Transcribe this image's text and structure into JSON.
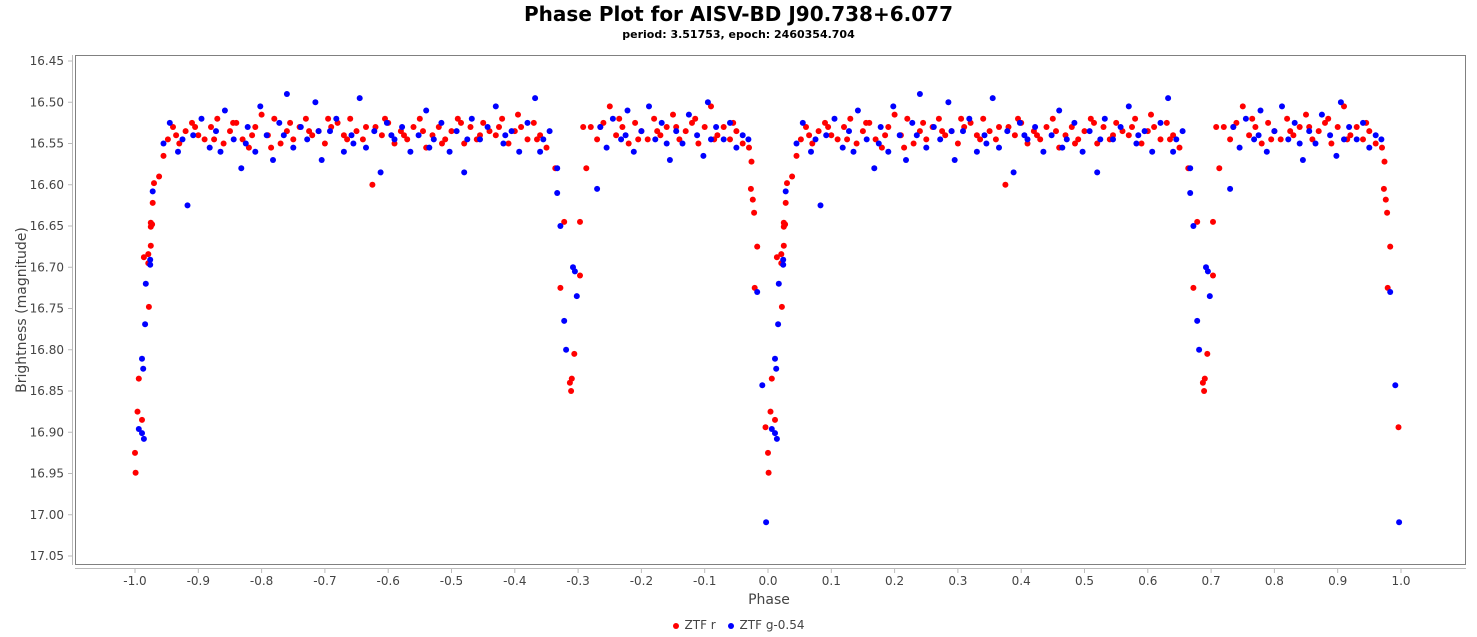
{
  "chart_data": {
    "type": "scatter",
    "title": "Phase Plot for AISV-BD J90.738+6.077",
    "subtitle": "period: 3.51753, epoch: 2460354.704",
    "xlabel": "Phase",
    "ylabel": "Brightness (magnitude)",
    "xlim": [
      -1.05,
      1.05
    ],
    "ylim": [
      16.45,
      17.05
    ],
    "y_inverted": true,
    "xticks": [
      "-1.0",
      "-0.9",
      "-0.8",
      "-0.7",
      "-0.6",
      "-0.5",
      "-0.4",
      "-0.3",
      "-0.2",
      "-0.1",
      "0.0",
      "0.1",
      "0.2",
      "0.3",
      "0.4",
      "0.5",
      "0.6",
      "0.7",
      "0.8",
      "0.9",
      "1.0"
    ],
    "yticks": [
      "16.45",
      "16.50",
      "16.55",
      "16.60",
      "16.65",
      "16.70",
      "16.75",
      "16.80",
      "16.85",
      "16.90",
      "16.95",
      "17.00",
      "17.05"
    ],
    "grid": false,
    "legend_position": "bottom",
    "phase_repeat": "each point plotted at phase and phase-1",
    "series": [
      {
        "name": "ZTF r",
        "color": "#ff0000",
        "points": [
          [
            0.004,
            16.875
          ],
          [
            0.996,
            16.894
          ],
          [
            0.011,
            16.885
          ],
          [
            0.0,
            16.925
          ],
          [
            0.001,
            16.949
          ],
          [
            0.006,
            16.835
          ],
          [
            0.022,
            16.748
          ],
          [
            0.025,
            16.674
          ],
          [
            0.014,
            16.688
          ],
          [
            0.021,
            16.684
          ],
          [
            0.021,
            16.695
          ],
          [
            0.025,
            16.646
          ],
          [
            0.027,
            16.648
          ],
          [
            0.025,
            16.651
          ],
          [
            0.028,
            16.622
          ],
          [
            0.03,
            16.598
          ],
          [
            0.038,
            16.59
          ],
          [
            0.979,
            16.725
          ],
          [
            0.973,
            16.605
          ],
          [
            0.976,
            16.618
          ],
          [
            0.978,
            16.634
          ],
          [
            0.983,
            16.675
          ],
          [
            0.974,
            16.572
          ],
          [
            0.97,
            16.555
          ],
          [
            0.664,
            16.58
          ],
          [
            0.678,
            16.645
          ],
          [
            0.672,
            16.725
          ],
          [
            0.687,
            16.84
          ],
          [
            0.689,
            16.85
          ],
          [
            0.69,
            16.835
          ],
          [
            0.694,
            16.805
          ],
          [
            0.703,
            16.71
          ],
          [
            0.703,
            16.645
          ],
          [
            0.713,
            16.58
          ],
          [
            0.708,
            16.53
          ],
          [
            0.045,
            16.565
          ],
          [
            0.052,
            16.545
          ],
          [
            0.06,
            16.53
          ],
          [
            0.07,
            16.55
          ],
          [
            0.08,
            16.535
          ],
          [
            0.09,
            16.525
          ],
          [
            0.1,
            16.54
          ],
          [
            0.11,
            16.545
          ],
          [
            0.12,
            16.53
          ],
          [
            0.13,
            16.52
          ],
          [
            0.14,
            16.55
          ],
          [
            0.15,
            16.535
          ],
          [
            0.16,
            16.525
          ],
          [
            0.17,
            16.545
          ],
          [
            0.18,
            16.555
          ],
          [
            0.19,
            16.53
          ],
          [
            0.2,
            16.515
          ],
          [
            0.21,
            16.54
          ],
          [
            0.22,
            16.52
          ],
          [
            0.23,
            16.55
          ],
          [
            0.24,
            16.535
          ],
          [
            0.25,
            16.545
          ],
          [
            0.26,
            16.53
          ],
          [
            0.27,
            16.52
          ],
          [
            0.28,
            16.54
          ],
          [
            0.29,
            16.535
          ],
          [
            0.3,
            16.55
          ],
          [
            0.31,
            16.53
          ],
          [
            0.32,
            16.525
          ],
          [
            0.33,
            16.54
          ],
          [
            0.34,
            16.52
          ],
          [
            0.35,
            16.535
          ],
          [
            0.36,
            16.545
          ],
          [
            0.375,
            16.6
          ],
          [
            0.38,
            16.53
          ],
          [
            0.39,
            16.54
          ],
          [
            0.4,
            16.525
          ],
          [
            0.41,
            16.55
          ],
          [
            0.42,
            16.535
          ],
          [
            0.43,
            16.545
          ],
          [
            0.44,
            16.53
          ],
          [
            0.45,
            16.52
          ],
          [
            0.46,
            16.555
          ],
          [
            0.47,
            16.54
          ],
          [
            0.48,
            16.53
          ],
          [
            0.49,
            16.545
          ],
          [
            0.5,
            16.535
          ],
          [
            0.51,
            16.52
          ],
          [
            0.52,
            16.55
          ],
          [
            0.53,
            16.53
          ],
          [
            0.54,
            16.545
          ],
          [
            0.55,
            16.525
          ],
          [
            0.56,
            16.535
          ],
          [
            0.57,
            16.54
          ],
          [
            0.58,
            16.52
          ],
          [
            0.59,
            16.55
          ],
          [
            0.6,
            16.535
          ],
          [
            0.61,
            16.53
          ],
          [
            0.62,
            16.545
          ],
          [
            0.63,
            16.525
          ],
          [
            0.64,
            16.54
          ],
          [
            0.65,
            16.555
          ],
          [
            0.72,
            16.53
          ],
          [
            0.73,
            16.545
          ],
          [
            0.74,
            16.525
          ],
          [
            0.75,
            16.505
          ],
          [
            0.76,
            16.54
          ],
          [
            0.77,
            16.53
          ],
          [
            0.78,
            16.55
          ],
          [
            0.79,
            16.525
          ],
          [
            0.8,
            16.535
          ],
          [
            0.81,
            16.545
          ],
          [
            0.82,
            16.52
          ],
          [
            0.83,
            16.54
          ],
          [
            0.84,
            16.53
          ],
          [
            0.85,
            16.515
          ],
          [
            0.86,
            16.545
          ],
          [
            0.87,
            16.535
          ],
          [
            0.88,
            16.525
          ],
          [
            0.89,
            16.55
          ],
          [
            0.9,
            16.53
          ],
          [
            0.91,
            16.505
          ],
          [
            0.92,
            16.54
          ],
          [
            0.93,
            16.53
          ],
          [
            0.94,
            16.545
          ],
          [
            0.95,
            16.535
          ],
          [
            0.96,
            16.55
          ],
          [
            0.065,
            16.54
          ],
          [
            0.095,
            16.53
          ],
          [
            0.125,
            16.545
          ],
          [
            0.155,
            16.525
          ],
          [
            0.185,
            16.54
          ],
          [
            0.215,
            16.555
          ],
          [
            0.245,
            16.525
          ],
          [
            0.275,
            16.535
          ],
          [
            0.305,
            16.52
          ],
          [
            0.335,
            16.545
          ],
          [
            0.365,
            16.53
          ],
          [
            0.395,
            16.52
          ],
          [
            0.425,
            16.54
          ],
          [
            0.455,
            16.535
          ],
          [
            0.485,
            16.55
          ],
          [
            0.515,
            16.525
          ],
          [
            0.545,
            16.54
          ],
          [
            0.575,
            16.53
          ],
          [
            0.605,
            16.515
          ],
          [
            0.635,
            16.545
          ],
          [
            0.735,
            16.53
          ],
          [
            0.765,
            16.52
          ],
          [
            0.795,
            16.545
          ],
          [
            0.825,
            16.535
          ],
          [
            0.855,
            16.53
          ],
          [
            0.885,
            16.52
          ],
          [
            0.915,
            16.545
          ],
          [
            0.945,
            16.525
          ]
        ]
      },
      {
        "name": "ZTF g-0.54",
        "color": "#0000ff",
        "points": [
          [
            0.997,
            17.009
          ],
          [
            0.006,
            16.896
          ],
          [
            0.011,
            16.901
          ],
          [
            0.014,
            16.908
          ],
          [
            0.991,
            16.843
          ],
          [
            0.011,
            16.811
          ],
          [
            0.013,
            16.823
          ],
          [
            0.016,
            16.769
          ],
          [
            0.017,
            16.72
          ],
          [
            0.024,
            16.691
          ],
          [
            0.024,
            16.697
          ],
          [
            0.028,
            16.608
          ],
          [
            0.983,
            16.73
          ],
          [
            0.667,
            16.58
          ],
          [
            0.667,
            16.61
          ],
          [
            0.672,
            16.65
          ],
          [
            0.678,
            16.765
          ],
          [
            0.681,
            16.8
          ],
          [
            0.692,
            16.7
          ],
          [
            0.695,
            16.705
          ],
          [
            0.698,
            16.735
          ],
          [
            0.73,
            16.605
          ],
          [
            0.969,
            16.545
          ],
          [
            0.045,
            16.55
          ],
          [
            0.055,
            16.525
          ],
          [
            0.068,
            16.56
          ],
          [
            0.083,
            16.625
          ],
          [
            0.092,
            16.54
          ],
          [
            0.105,
            16.52
          ],
          [
            0.118,
            16.555
          ],
          [
            0.128,
            16.535
          ],
          [
            0.142,
            16.51
          ],
          [
            0.156,
            16.545
          ],
          [
            0.168,
            16.58
          ],
          [
            0.178,
            16.53
          ],
          [
            0.19,
            16.56
          ],
          [
            0.198,
            16.505
          ],
          [
            0.208,
            16.54
          ],
          [
            0.218,
            16.57
          ],
          [
            0.228,
            16.525
          ],
          [
            0.24,
            16.49
          ],
          [
            0.25,
            16.555
          ],
          [
            0.262,
            16.53
          ],
          [
            0.272,
            16.545
          ],
          [
            0.285,
            16.5
          ],
          [
            0.295,
            16.57
          ],
          [
            0.308,
            16.535
          ],
          [
            0.318,
            16.52
          ],
          [
            0.33,
            16.56
          ],
          [
            0.342,
            16.54
          ],
          [
            0.355,
            16.495
          ],
          [
            0.365,
            16.555
          ],
          [
            0.378,
            16.535
          ],
          [
            0.388,
            16.585
          ],
          [
            0.398,
            16.525
          ],
          [
            0.41,
            16.545
          ],
          [
            0.422,
            16.53
          ],
          [
            0.435,
            16.56
          ],
          [
            0.448,
            16.54
          ],
          [
            0.46,
            16.51
          ],
          [
            0.472,
            16.545
          ],
          [
            0.484,
            16.525
          ],
          [
            0.497,
            16.56
          ],
          [
            0.508,
            16.535
          ],
          [
            0.52,
            16.585
          ],
          [
            0.532,
            16.52
          ],
          [
            0.545,
            16.545
          ],
          [
            0.557,
            16.53
          ],
          [
            0.57,
            16.505
          ],
          [
            0.582,
            16.55
          ],
          [
            0.595,
            16.535
          ],
          [
            0.607,
            16.56
          ],
          [
            0.62,
            16.525
          ],
          [
            0.632,
            16.495
          ],
          [
            0.645,
            16.545
          ],
          [
            0.655,
            16.535
          ],
          [
            0.735,
            16.53
          ],
          [
            0.745,
            16.555
          ],
          [
            0.755,
            16.52
          ],
          [
            0.768,
            16.545
          ],
          [
            0.778,
            16.51
          ],
          [
            0.788,
            16.56
          ],
          [
            0.8,
            16.535
          ],
          [
            0.812,
            16.505
          ],
          [
            0.822,
            16.545
          ],
          [
            0.832,
            16.525
          ],
          [
            0.845,
            16.57
          ],
          [
            0.855,
            16.535
          ],
          [
            0.865,
            16.55
          ],
          [
            0.875,
            16.515
          ],
          [
            0.888,
            16.54
          ],
          [
            0.898,
            16.565
          ],
          [
            0.905,
            16.5
          ],
          [
            0.918,
            16.53
          ],
          [
            0.93,
            16.545
          ],
          [
            0.94,
            16.525
          ],
          [
            0.95,
            16.555
          ],
          [
            0.96,
            16.54
          ],
          [
            0.075,
            16.545
          ],
          [
            0.135,
            16.56
          ],
          [
            0.175,
            16.55
          ],
          [
            0.235,
            16.54
          ],
          [
            0.29,
            16.535
          ],
          [
            0.345,
            16.55
          ],
          [
            0.405,
            16.54
          ],
          [
            0.465,
            16.555
          ],
          [
            0.525,
            16.545
          ],
          [
            0.585,
            16.54
          ],
          [
            0.64,
            16.56
          ],
          [
            0.775,
            16.54
          ],
          [
            0.84,
            16.55
          ],
          [
            0.91,
            16.545
          ]
        ]
      }
    ]
  }
}
